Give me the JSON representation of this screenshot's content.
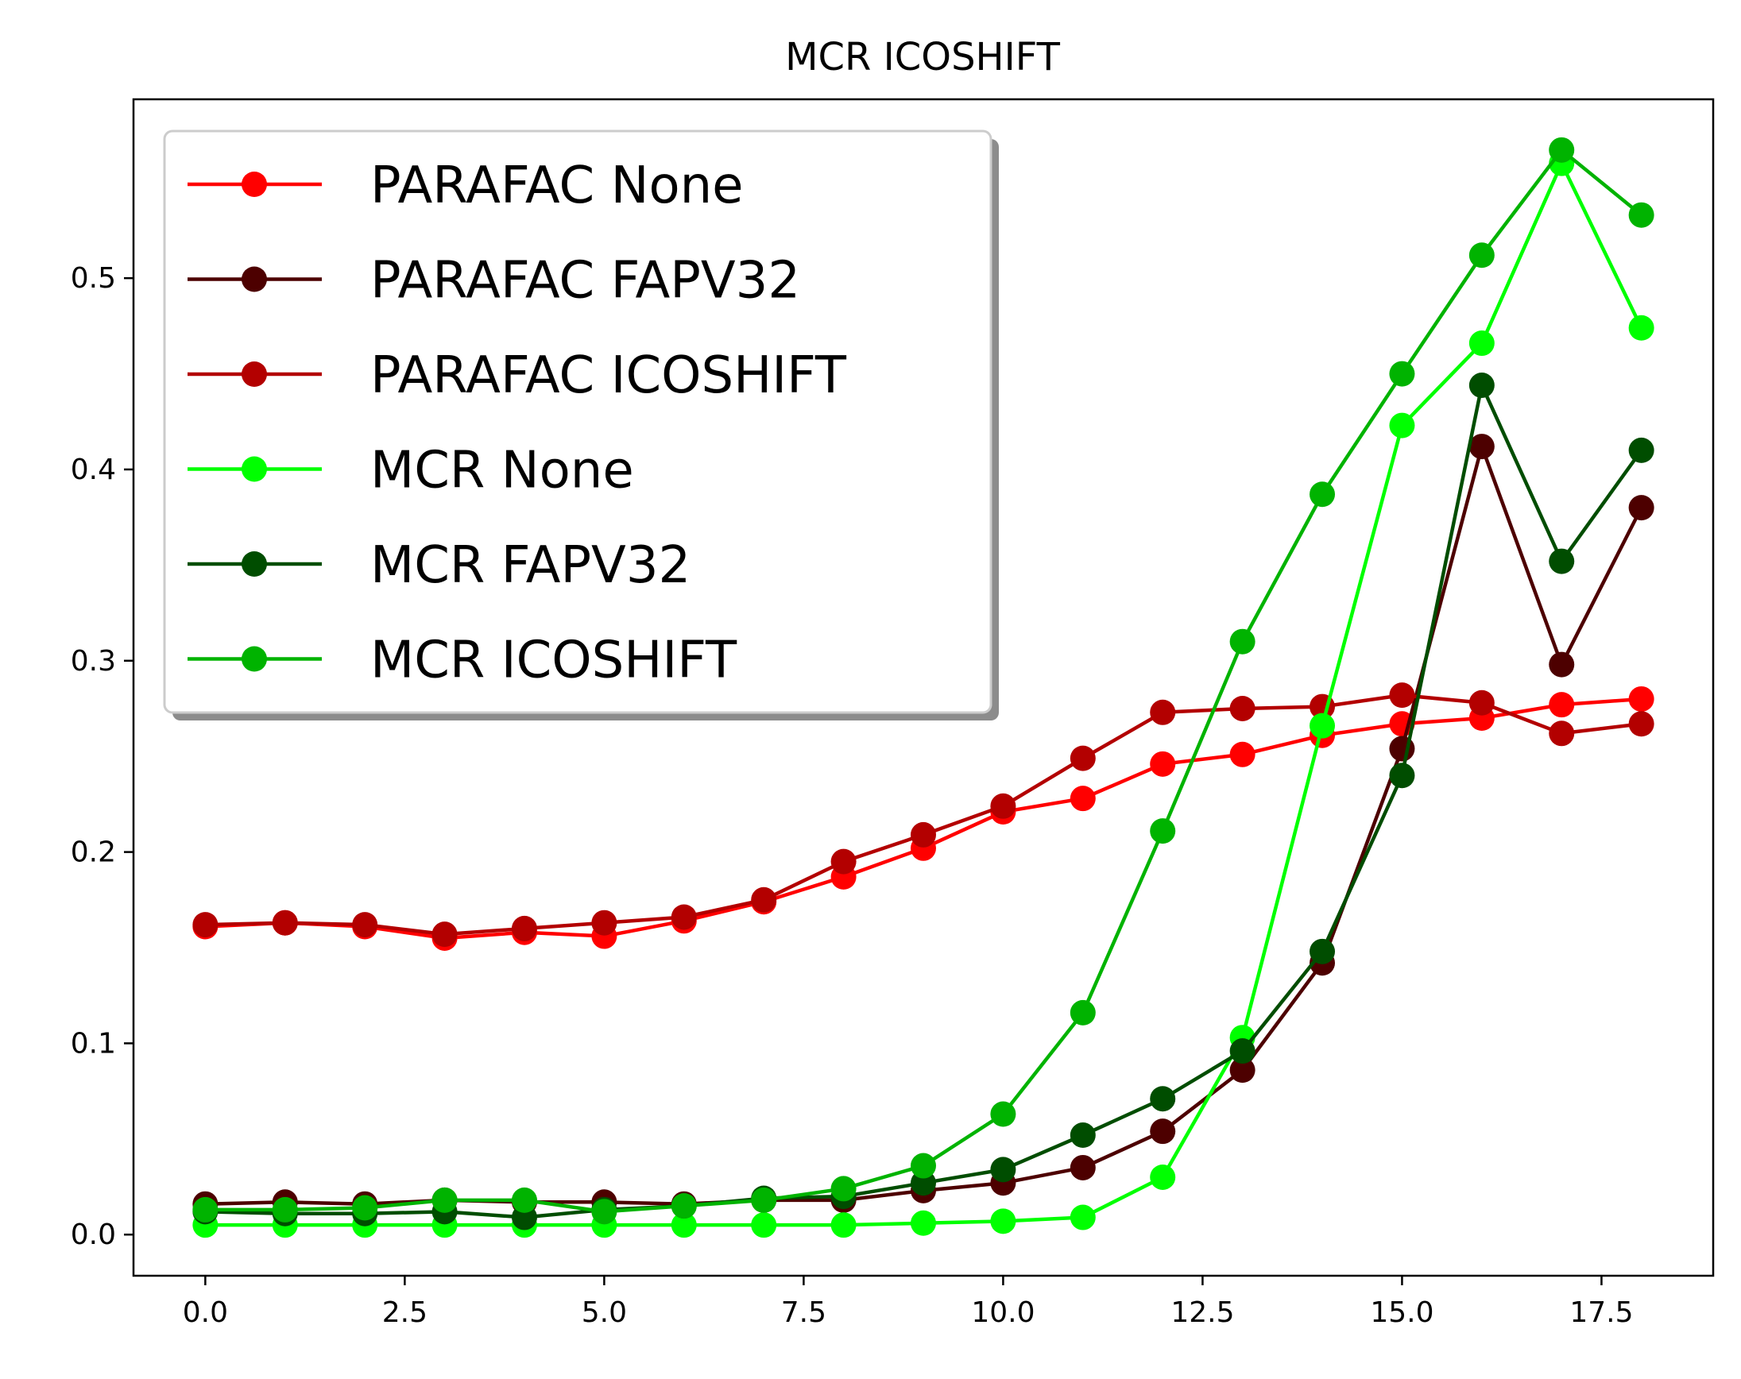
{
  "chart_data": {
    "type": "line",
    "title": "MCR ICOSHIFT",
    "xlabel": "",
    "ylabel": "",
    "xlim": [
      -0.9,
      18.9
    ],
    "ylim": [
      -0.0215,
      0.5935
    ],
    "xticks": [
      0.0,
      2.5,
      5.0,
      7.5,
      10.0,
      12.5,
      15.0,
      17.5
    ],
    "xtick_labels": [
      "0.0",
      "2.5",
      "5.0",
      "7.5",
      "10.0",
      "12.5",
      "15.0",
      "17.5"
    ],
    "yticks": [
      0.0,
      0.1,
      0.2,
      0.3,
      0.4,
      0.5
    ],
    "ytick_labels": [
      "0.0",
      "0.1",
      "0.2",
      "0.3",
      "0.4",
      "0.5"
    ],
    "grid": false,
    "legend_position": "top-left",
    "x": [
      0,
      1,
      2,
      3,
      4,
      5,
      6,
      7,
      8,
      9,
      10,
      11,
      12,
      13,
      14,
      15,
      16,
      17,
      18
    ],
    "series": [
      {
        "name": "PARAFAC None",
        "color": "#ff0000",
        "values": [
          0.161,
          0.163,
          0.161,
          0.155,
          0.158,
          0.156,
          0.164,
          0.174,
          0.187,
          0.202,
          0.221,
          0.228,
          0.246,
          0.251,
          0.261,
          0.267,
          0.27,
          0.277,
          0.28
        ]
      },
      {
        "name": "PARAFAC FAPV32",
        "color": "#4d0000",
        "values": [
          0.016,
          0.017,
          0.016,
          0.018,
          0.017,
          0.017,
          0.016,
          0.018,
          0.018,
          0.023,
          0.027,
          0.035,
          0.054,
          0.086,
          0.142,
          0.254,
          0.412,
          0.298,
          0.38
        ]
      },
      {
        "name": "PARAFAC ICOSHIFT",
        "color": "#b30000",
        "values": [
          0.162,
          0.163,
          0.162,
          0.157,
          0.16,
          0.163,
          0.166,
          0.175,
          0.195,
          0.209,
          0.224,
          0.249,
          0.273,
          0.275,
          0.276,
          0.282,
          0.278,
          0.262,
          0.267
        ]
      },
      {
        "name": "MCR None",
        "color": "#00ff00",
        "values": [
          0.005,
          0.005,
          0.005,
          0.005,
          0.005,
          0.005,
          0.005,
          0.005,
          0.005,
          0.006,
          0.007,
          0.009,
          0.03,
          0.103,
          0.266,
          0.423,
          0.466,
          0.56,
          0.474
        ]
      },
      {
        "name": "MCR FAPV32",
        "color": "#004d00",
        "values": [
          0.012,
          0.011,
          0.011,
          0.012,
          0.009,
          0.013,
          0.015,
          0.019,
          0.02,
          0.027,
          0.034,
          0.052,
          0.071,
          0.096,
          0.148,
          0.24,
          0.444,
          0.352,
          0.41
        ]
      },
      {
        "name": "MCR ICOSHIFT",
        "color": "#00b300",
        "values": [
          0.013,
          0.013,
          0.014,
          0.018,
          0.018,
          0.012,
          0.015,
          0.018,
          0.024,
          0.036,
          0.063,
          0.116,
          0.211,
          0.31,
          0.387,
          0.45,
          0.512,
          0.567,
          0.533
        ]
      }
    ]
  }
}
